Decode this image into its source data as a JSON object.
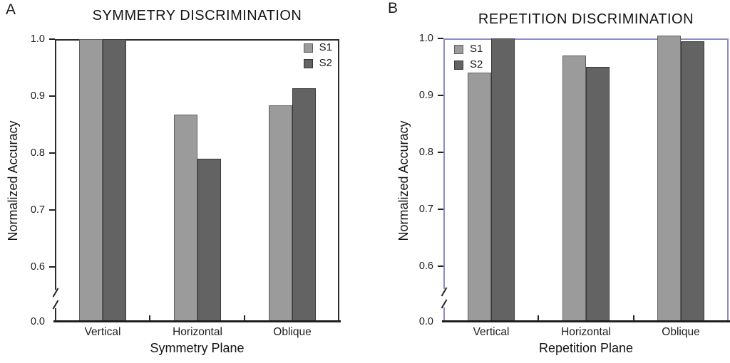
{
  "chart_data": [
    {
      "type": "bar",
      "panel_label": "A",
      "title": "SYMMETRY DISCRIMINATION",
      "xlabel": "Symmetry Plane",
      "ylabel": "Normalized Accuracy",
      "categories": [
        "Vertical",
        "Horizontal",
        "Oblique"
      ],
      "series": [
        {
          "name": "S1",
          "color": "#9b9b9b",
          "border": "#606060",
          "values": [
            1.0,
            0.868,
            0.884
          ]
        },
        {
          "name": "S2",
          "color": "#636363",
          "border": "#383838",
          "values": [
            1.0,
            0.79,
            0.914
          ]
        }
      ],
      "yticks": [
        {
          "label": "1.0",
          "v": 1.0
        },
        {
          "label": "0.9",
          "v": 0.9
        },
        {
          "label": "0.8",
          "v": 0.8
        },
        {
          "label": "0.7",
          "v": 0.7
        },
        {
          "label": "0.6",
          "v": 0.6
        },
        {
          "label": "0.0",
          "v": "baseline"
        }
      ],
      "ylim": [
        0.0,
        1.0
      ],
      "axis_break": true,
      "grid": false,
      "legend_position": "top-right",
      "frame_color": "#2b2b2b"
    },
    {
      "type": "bar",
      "panel_label": "B",
      "title": "REPETITION DISCRIMINATION",
      "xlabel": "Repetition Plane",
      "ylabel": "Normalized Accuracy",
      "categories": [
        "Vertical",
        "Horizontal",
        "Oblique"
      ],
      "series": [
        {
          "name": "S1",
          "color": "#9b9b9b",
          "border": "#606060",
          "values": [
            0.94,
            0.97,
            1.005
          ]
        },
        {
          "name": "S2",
          "color": "#636363",
          "border": "#383838",
          "values": [
            1.0,
            0.95,
            0.995
          ]
        }
      ],
      "yticks": [
        {
          "label": "1.0",
          "v": 1.0
        },
        {
          "label": "0.9",
          "v": 0.9
        },
        {
          "label": "0.8",
          "v": 0.8
        },
        {
          "label": "0.7",
          "v": 0.7
        },
        {
          "label": "0.6",
          "v": 0.6
        },
        {
          "label": "0.0",
          "v": "baseline"
        }
      ],
      "ylim": [
        0.0,
        1.0
      ],
      "axis_break": true,
      "grid": false,
      "legend_position": "top-left",
      "frame_color": "#8c8cc8"
    }
  ]
}
